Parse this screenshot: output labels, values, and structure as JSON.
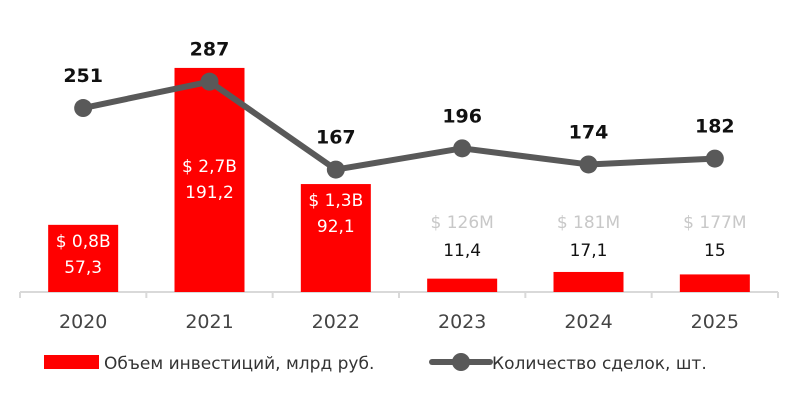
{
  "chart_data": {
    "type": "bar+line",
    "categories": [
      "2020",
      "2021",
      "2022",
      "2023",
      "2024",
      "2025"
    ],
    "series": [
      {
        "name": "Объем инвестиций, млрд руб.",
        "type": "bar",
        "color": "#ff0000",
        "values": [
          57.3,
          191.2,
          92.1,
          11.4,
          17.1,
          15
        ],
        "labels": [
          "57,3",
          "191,2",
          "92,1",
          "11,4",
          "17,1",
          "15"
        ],
        "usd_labels": [
          "$ 0,8B",
          "$ 2,7B",
          "$ 1,3B",
          "$ 126M",
          "$ 181M",
          "$ 177M"
        ]
      },
      {
        "name": "Количество сделок,  шт.",
        "type": "line",
        "color": "#595959",
        "values": [
          251,
          287,
          167,
          196,
          174,
          182
        ],
        "labels": [
          "251",
          "287",
          "167",
          "196",
          "174",
          "182"
        ]
      }
    ],
    "legend_position": "bottom",
    "grid": false,
    "axis_color": "#d9d9d9"
  }
}
